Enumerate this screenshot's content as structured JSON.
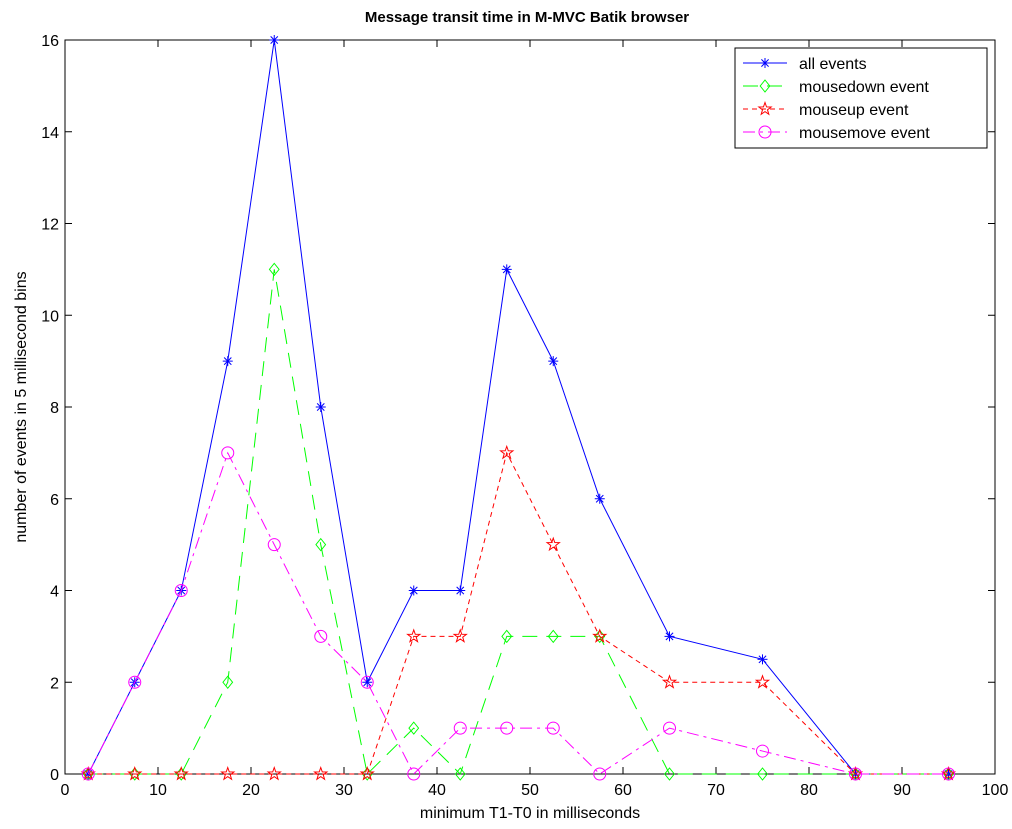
{
  "chart_data": {
    "type": "line",
    "title": "Message transit time in M-MVC Batik browser",
    "xlabel": "minimum T1-T0 in milliseconds",
    "ylabel": "number of events in 5 millisecond bins",
    "xlim": [
      0,
      100
    ],
    "ylim": [
      0,
      16
    ],
    "x_ticks": [
      "0",
      "10",
      "20",
      "30",
      "40",
      "50",
      "60",
      "70",
      "80",
      "90",
      "100"
    ],
    "y_ticks": [
      "0",
      "2",
      "4",
      "6",
      "8",
      "10",
      "12",
      "14",
      "16"
    ],
    "grid": false,
    "legend_position": "top-right",
    "series": [
      {
        "name": "all events",
        "color": "#0000ff",
        "line_style": "solid",
        "marker": "asterisk",
        "x": [
          2.5,
          7.5,
          12.5,
          17.5,
          22.5,
          27.5,
          32.5,
          37.5,
          42.5,
          47.5,
          52.5,
          57.5,
          65,
          75,
          85,
          95
        ],
        "y": [
          0,
          2,
          4,
          9,
          16,
          8,
          2,
          4,
          4,
          11,
          9,
          6,
          3,
          2.5,
          0,
          0
        ]
      },
      {
        "name": "mousedown event",
        "color": "#00ff00",
        "line_style": "long-dash",
        "marker": "diamond",
        "x": [
          2.5,
          7.5,
          12.5,
          17.5,
          22.5,
          27.5,
          32.5,
          37.5,
          42.5,
          47.5,
          52.5,
          57.5,
          65,
          75,
          85,
          95
        ],
        "y": [
          0,
          0,
          0,
          2,
          11,
          5,
          0,
          1,
          0,
          3,
          3,
          3,
          0,
          0,
          0,
          0
        ]
      },
      {
        "name": "mouseup event",
        "color": "#ff0000",
        "line_style": "short-dash",
        "marker": "pentagram",
        "x": [
          2.5,
          7.5,
          12.5,
          17.5,
          22.5,
          27.5,
          32.5,
          37.5,
          42.5,
          47.5,
          52.5,
          57.5,
          65,
          75,
          85,
          95
        ],
        "y": [
          0,
          0,
          0,
          0,
          0,
          0,
          0,
          3,
          3,
          7,
          5,
          3,
          2,
          2,
          0,
          0
        ]
      },
      {
        "name": "mousemove event",
        "color": "#ff00ff",
        "line_style": "dash-dot",
        "marker": "circle",
        "x": [
          2.5,
          7.5,
          12.5,
          17.5,
          22.5,
          27.5,
          32.5,
          37.5,
          42.5,
          47.5,
          52.5,
          57.5,
          65,
          75,
          85,
          95
        ],
        "y": [
          0,
          2,
          4,
          7,
          5,
          3,
          2,
          0,
          1,
          1,
          1,
          0,
          1,
          0.5,
          0,
          0
        ]
      }
    ]
  }
}
